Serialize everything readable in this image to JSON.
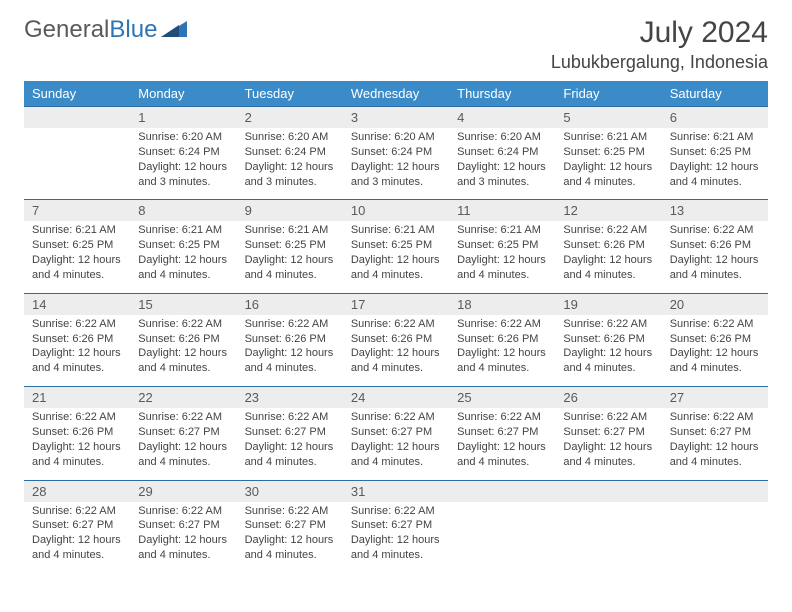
{
  "logo": {
    "text1": "General",
    "text2": "Blue"
  },
  "header": {
    "month": "July 2024",
    "location": "Lubukbergalung, Indonesia"
  },
  "colors": {
    "header_bg": "#3b8bc8",
    "header_fg": "#ffffff",
    "daynum_bg": "#ededed",
    "daynum_fg": "#5a5a5a",
    "rule": "#2e6da4",
    "text": "#444444",
    "logo_gray": "#5a5a5a",
    "logo_blue": "#2e75b6"
  },
  "daynames": [
    "Sunday",
    "Monday",
    "Tuesday",
    "Wednesday",
    "Thursday",
    "Friday",
    "Saturday"
  ],
  "weeks": [
    {
      "nums": [
        "",
        "1",
        "2",
        "3",
        "4",
        "5",
        "6"
      ],
      "cells": [
        null,
        {
          "sunrise": "Sunrise: 6:20 AM",
          "sunset": "Sunset: 6:24 PM",
          "day1": "Daylight: 12 hours",
          "day2": "and 3 minutes."
        },
        {
          "sunrise": "Sunrise: 6:20 AM",
          "sunset": "Sunset: 6:24 PM",
          "day1": "Daylight: 12 hours",
          "day2": "and 3 minutes."
        },
        {
          "sunrise": "Sunrise: 6:20 AM",
          "sunset": "Sunset: 6:24 PM",
          "day1": "Daylight: 12 hours",
          "day2": "and 3 minutes."
        },
        {
          "sunrise": "Sunrise: 6:20 AM",
          "sunset": "Sunset: 6:24 PM",
          "day1": "Daylight: 12 hours",
          "day2": "and 3 minutes."
        },
        {
          "sunrise": "Sunrise: 6:21 AM",
          "sunset": "Sunset: 6:25 PM",
          "day1": "Daylight: 12 hours",
          "day2": "and 4 minutes."
        },
        {
          "sunrise": "Sunrise: 6:21 AM",
          "sunset": "Sunset: 6:25 PM",
          "day1": "Daylight: 12 hours",
          "day2": "and 4 minutes."
        }
      ]
    },
    {
      "nums": [
        "7",
        "8",
        "9",
        "10",
        "11",
        "12",
        "13"
      ],
      "cells": [
        {
          "sunrise": "Sunrise: 6:21 AM",
          "sunset": "Sunset: 6:25 PM",
          "day1": "Daylight: 12 hours",
          "day2": "and 4 minutes."
        },
        {
          "sunrise": "Sunrise: 6:21 AM",
          "sunset": "Sunset: 6:25 PM",
          "day1": "Daylight: 12 hours",
          "day2": "and 4 minutes."
        },
        {
          "sunrise": "Sunrise: 6:21 AM",
          "sunset": "Sunset: 6:25 PM",
          "day1": "Daylight: 12 hours",
          "day2": "and 4 minutes."
        },
        {
          "sunrise": "Sunrise: 6:21 AM",
          "sunset": "Sunset: 6:25 PM",
          "day1": "Daylight: 12 hours",
          "day2": "and 4 minutes."
        },
        {
          "sunrise": "Sunrise: 6:21 AM",
          "sunset": "Sunset: 6:25 PM",
          "day1": "Daylight: 12 hours",
          "day2": "and 4 minutes."
        },
        {
          "sunrise": "Sunrise: 6:22 AM",
          "sunset": "Sunset: 6:26 PM",
          "day1": "Daylight: 12 hours",
          "day2": "and 4 minutes."
        },
        {
          "sunrise": "Sunrise: 6:22 AM",
          "sunset": "Sunset: 6:26 PM",
          "day1": "Daylight: 12 hours",
          "day2": "and 4 minutes."
        }
      ]
    },
    {
      "nums": [
        "14",
        "15",
        "16",
        "17",
        "18",
        "19",
        "20"
      ],
      "cells": [
        {
          "sunrise": "Sunrise: 6:22 AM",
          "sunset": "Sunset: 6:26 PM",
          "day1": "Daylight: 12 hours",
          "day2": "and 4 minutes."
        },
        {
          "sunrise": "Sunrise: 6:22 AM",
          "sunset": "Sunset: 6:26 PM",
          "day1": "Daylight: 12 hours",
          "day2": "and 4 minutes."
        },
        {
          "sunrise": "Sunrise: 6:22 AM",
          "sunset": "Sunset: 6:26 PM",
          "day1": "Daylight: 12 hours",
          "day2": "and 4 minutes."
        },
        {
          "sunrise": "Sunrise: 6:22 AM",
          "sunset": "Sunset: 6:26 PM",
          "day1": "Daylight: 12 hours",
          "day2": "and 4 minutes."
        },
        {
          "sunrise": "Sunrise: 6:22 AM",
          "sunset": "Sunset: 6:26 PM",
          "day1": "Daylight: 12 hours",
          "day2": "and 4 minutes."
        },
        {
          "sunrise": "Sunrise: 6:22 AM",
          "sunset": "Sunset: 6:26 PM",
          "day1": "Daylight: 12 hours",
          "day2": "and 4 minutes."
        },
        {
          "sunrise": "Sunrise: 6:22 AM",
          "sunset": "Sunset: 6:26 PM",
          "day1": "Daylight: 12 hours",
          "day2": "and 4 minutes."
        }
      ]
    },
    {
      "nums": [
        "21",
        "22",
        "23",
        "24",
        "25",
        "26",
        "27"
      ],
      "cells": [
        {
          "sunrise": "Sunrise: 6:22 AM",
          "sunset": "Sunset: 6:26 PM",
          "day1": "Daylight: 12 hours",
          "day2": "and 4 minutes."
        },
        {
          "sunrise": "Sunrise: 6:22 AM",
          "sunset": "Sunset: 6:27 PM",
          "day1": "Daylight: 12 hours",
          "day2": "and 4 minutes."
        },
        {
          "sunrise": "Sunrise: 6:22 AM",
          "sunset": "Sunset: 6:27 PM",
          "day1": "Daylight: 12 hours",
          "day2": "and 4 minutes."
        },
        {
          "sunrise": "Sunrise: 6:22 AM",
          "sunset": "Sunset: 6:27 PM",
          "day1": "Daylight: 12 hours",
          "day2": "and 4 minutes."
        },
        {
          "sunrise": "Sunrise: 6:22 AM",
          "sunset": "Sunset: 6:27 PM",
          "day1": "Daylight: 12 hours",
          "day2": "and 4 minutes."
        },
        {
          "sunrise": "Sunrise: 6:22 AM",
          "sunset": "Sunset: 6:27 PM",
          "day1": "Daylight: 12 hours",
          "day2": "and 4 minutes."
        },
        {
          "sunrise": "Sunrise: 6:22 AM",
          "sunset": "Sunset: 6:27 PM",
          "day1": "Daylight: 12 hours",
          "day2": "and 4 minutes."
        }
      ]
    },
    {
      "nums": [
        "28",
        "29",
        "30",
        "31",
        "",
        "",
        ""
      ],
      "cells": [
        {
          "sunrise": "Sunrise: 6:22 AM",
          "sunset": "Sunset: 6:27 PM",
          "day1": "Daylight: 12 hours",
          "day2": "and 4 minutes."
        },
        {
          "sunrise": "Sunrise: 6:22 AM",
          "sunset": "Sunset: 6:27 PM",
          "day1": "Daylight: 12 hours",
          "day2": "and 4 minutes."
        },
        {
          "sunrise": "Sunrise: 6:22 AM",
          "sunset": "Sunset: 6:27 PM",
          "day1": "Daylight: 12 hours",
          "day2": "and 4 minutes."
        },
        {
          "sunrise": "Sunrise: 6:22 AM",
          "sunset": "Sunset: 6:27 PM",
          "day1": "Daylight: 12 hours",
          "day2": "and 4 minutes."
        },
        null,
        null,
        null
      ]
    }
  ]
}
